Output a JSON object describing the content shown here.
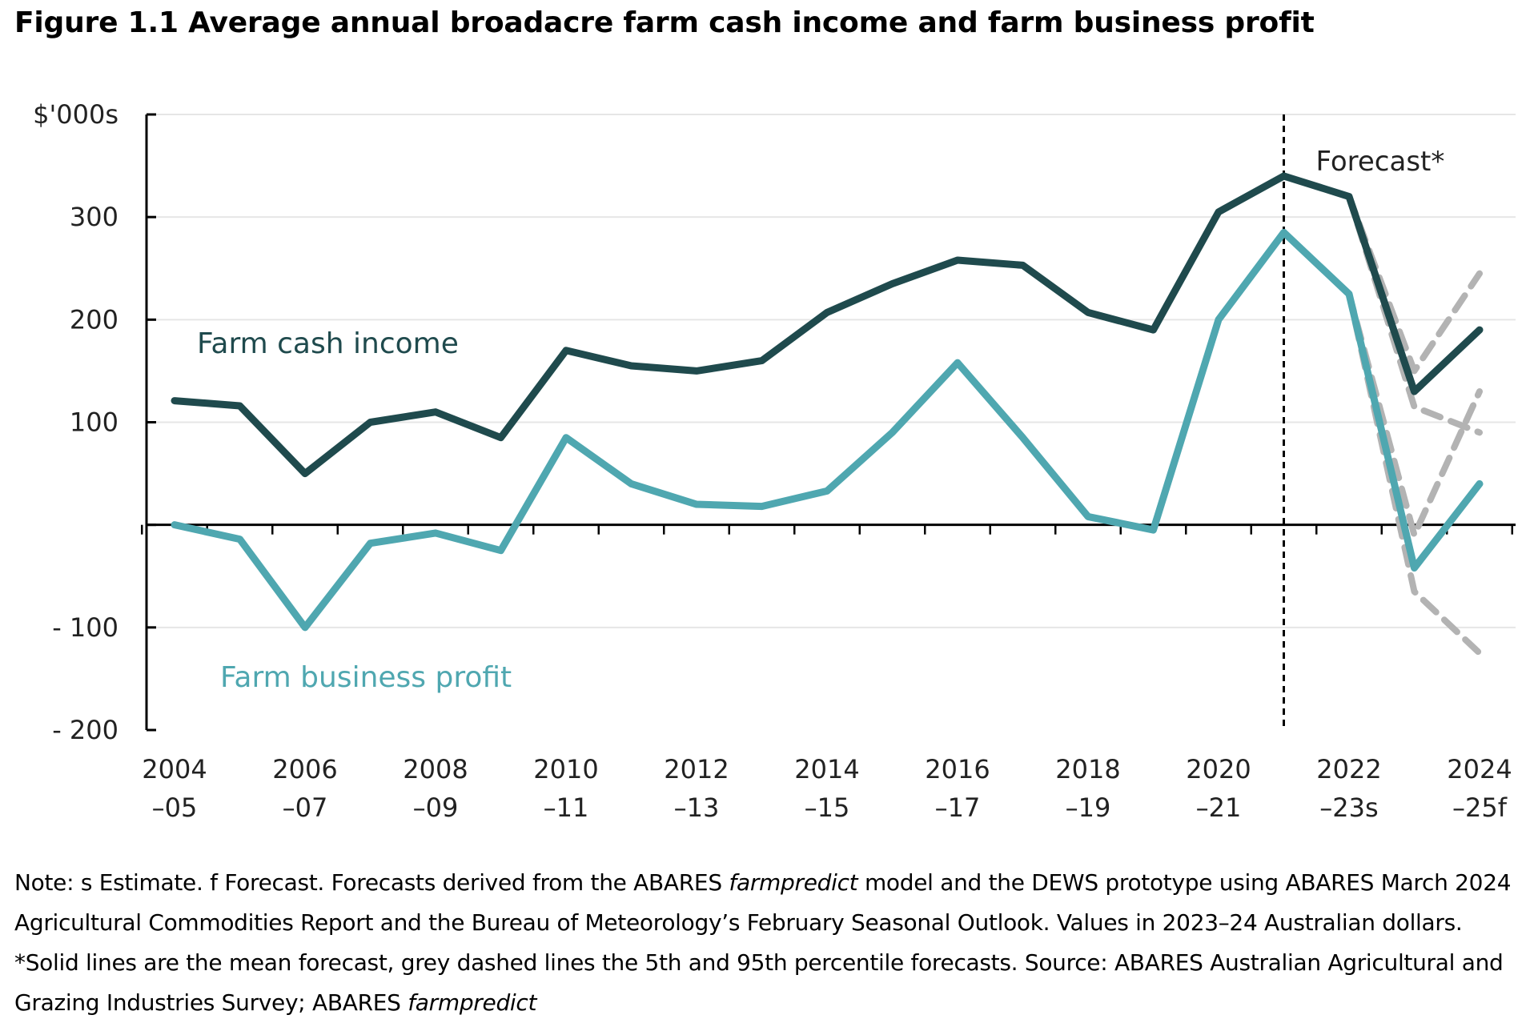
{
  "figure": {
    "title": "Figure 1.1 Average annual broadacre farm cash income and farm business profit",
    "note": {
      "p1": "Note: s Estimate. f Forecast. Forecasts derived from the ABARES ",
      "i1": "farmpredict",
      "p2": " model and the DEWS prototype using ABARES March 2024 Agricultural Commodities Report and the Bureau of Meteorology’s February Seasonal Outlook. Values in 2023–24 Australian dollars. *Solid lines are the mean forecast, grey dashed lines the 5th and 95th percentile forecasts. Source: ABARES Australian Agricultural and Grazing Industries Survey; ABARES ",
      "i2": "farmpredict"
    }
  },
  "chart_data": {
    "type": "line",
    "ylabel": "$'000s",
    "ylim": [
      -200,
      400
    ],
    "yticks": [
      300,
      200,
      100,
      -100,
      -200
    ],
    "ytick_labels": [
      "300",
      "200",
      "100",
      "- 100",
      "- 200"
    ],
    "grid": "horizontal",
    "x": [
      "2004–05",
      "2005–06",
      "2006–07",
      "2007–08",
      "2008–09",
      "2009–10",
      "2010–11",
      "2011–12",
      "2012–13",
      "2013–14",
      "2014–15",
      "2015–16",
      "2016–17",
      "2017–18",
      "2018–19",
      "2019–20",
      "2020–21",
      "2021–22",
      "2022–23s",
      "2023–24",
      "2024–25f"
    ],
    "xtick_labels": [
      {
        "index": 0,
        "line1": "2004",
        "line2": "–05"
      },
      {
        "index": 2,
        "line1": "2006",
        "line2": "–07"
      },
      {
        "index": 4,
        "line1": "2008",
        "line2": "–09"
      },
      {
        "index": 6,
        "line1": "2010",
        "line2": "–11"
      },
      {
        "index": 8,
        "line1": "2012",
        "line2": "–13"
      },
      {
        "index": 10,
        "line1": "2014",
        "line2": "–15"
      },
      {
        "index": 12,
        "line1": "2016",
        "line2": "–17"
      },
      {
        "index": 14,
        "line1": "2018",
        "line2": "–19"
      },
      {
        "index": 16,
        "line1": "2020",
        "line2": "–21"
      },
      {
        "index": 18,
        "line1": "2022",
        "line2": "–23s"
      },
      {
        "index": 20,
        "line1": "2024",
        "line2": "–25f"
      }
    ],
    "forecast_marker": {
      "index": 17,
      "label": "Forecast*"
    },
    "series": [
      {
        "name": "Farm cash income",
        "color": "#1f4a4d",
        "values": [
          121,
          116,
          50,
          100,
          110,
          85,
          170,
          155,
          150,
          160,
          207,
          235,
          258,
          253,
          207,
          190,
          305,
          340,
          320,
          130,
          190
        ]
      },
      {
        "name": "Farm business profit",
        "color": "#4fa7b0",
        "values": [
          0,
          -14,
          -100,
          -18,
          -8,
          -25,
          85,
          40,
          20,
          18,
          33,
          90,
          158,
          85,
          8,
          -5,
          200,
          285,
          225,
          -42,
          40
        ]
      }
    ],
    "percentile_series": [
      {
        "name": "Farm cash income 95th",
        "color": "#b3b3b3",
        "x_index": [
          18,
          19,
          20
        ],
        "values": [
          320,
          150,
          245
        ]
      },
      {
        "name": "Farm cash income 5th",
        "color": "#b3b3b3",
        "x_index": [
          18,
          19,
          20
        ],
        "values": [
          320,
          115,
          90
        ]
      },
      {
        "name": "Farm business profit 95th",
        "color": "#b3b3b3",
        "x_index": [
          18,
          19,
          20
        ],
        "values": [
          225,
          -10,
          130
        ]
      },
      {
        "name": "Farm business profit 5th",
        "color": "#b3b3b3",
        "x_index": [
          18,
          19,
          20
        ],
        "values": [
          225,
          -65,
          -125
        ]
      }
    ]
  }
}
